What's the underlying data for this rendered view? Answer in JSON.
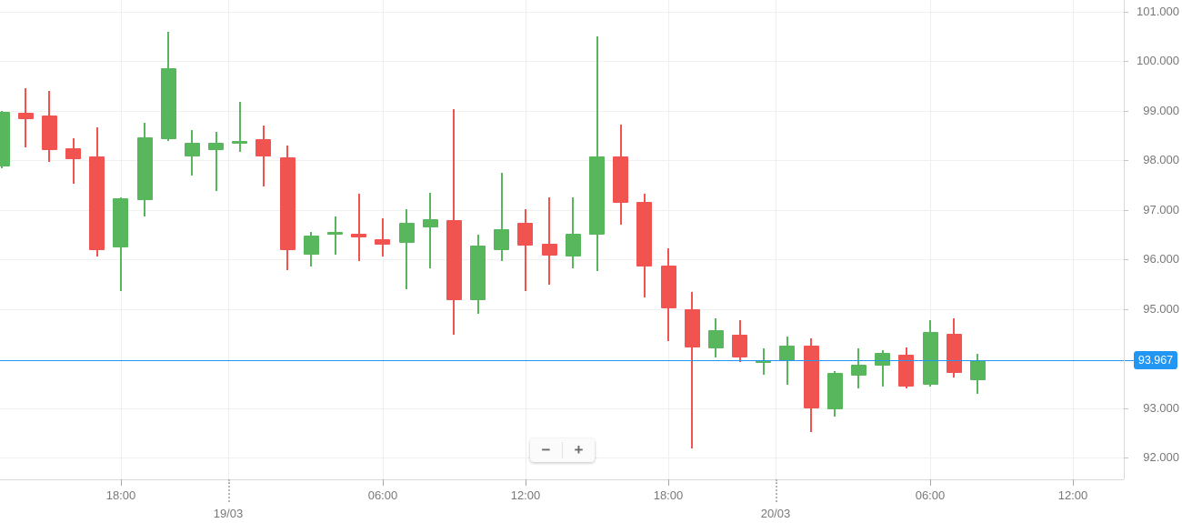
{
  "chart_data": {
    "type": "candlestick",
    "grid": true,
    "legend_position": "none",
    "colors": {
      "up": "#58b65c",
      "down": "#f05350",
      "price_line": "#2196f3",
      "grid": "#f0f0f0",
      "axis_border": "#d9d9d9",
      "axis_text": "#787878"
    },
    "y_axis": {
      "max": 101,
      "min": 92,
      "hidden_tick_behind_badge": "94.000",
      "ticks": [
        {
          "label": "101.000",
          "value": 101
        },
        {
          "label": "100.000",
          "value": 100
        },
        {
          "label": "99.000",
          "value": 99
        },
        {
          "label": "98.000",
          "value": 98
        },
        {
          "label": "97.000",
          "value": 97
        },
        {
          "label": "96.000",
          "value": 96
        },
        {
          "label": "95.000",
          "value": 95
        },
        {
          "label": "93.000",
          "value": 93
        },
        {
          "label": "92.000",
          "value": 92
        }
      ]
    },
    "x_axis": {
      "ticks": [
        {
          "label": "18:00",
          "kind": "time",
          "index": 5
        },
        {
          "label": "19/03",
          "kind": "date",
          "index": 9.5
        },
        {
          "label": "06:00",
          "kind": "time",
          "index": 16
        },
        {
          "label": "12:00",
          "kind": "time",
          "index": 22
        },
        {
          "label": "18:00",
          "kind": "time",
          "index": 28
        },
        {
          "label": "20/03",
          "kind": "date",
          "index": 32.5
        },
        {
          "label": "06:00",
          "kind": "time",
          "index": 39
        },
        {
          "label": "12:00",
          "kind": "time",
          "index": 45
        }
      ]
    },
    "candles": [
      {
        "o": 97.88,
        "h": 99.0,
        "l": 97.85,
        "c": 98.98
      },
      {
        "o": 98.97,
        "h": 99.46,
        "l": 98.26,
        "c": 98.84
      },
      {
        "o": 98.9,
        "h": 99.4,
        "l": 97.97,
        "c": 98.21
      },
      {
        "o": 98.24,
        "h": 98.45,
        "l": 97.53,
        "c": 98.02
      },
      {
        "o": 98.08,
        "h": 98.66,
        "l": 96.05,
        "c": 96.19
      },
      {
        "o": 96.23,
        "h": 97.25,
        "l": 95.36,
        "c": 97.23
      },
      {
        "o": 97.19,
        "h": 98.76,
        "l": 96.86,
        "c": 98.46
      },
      {
        "o": 98.42,
        "h": 100.6,
        "l": 98.39,
        "c": 99.86
      },
      {
        "o": 98.07,
        "h": 98.61,
        "l": 97.7,
        "c": 98.35
      },
      {
        "o": 98.21,
        "h": 98.58,
        "l": 97.38,
        "c": 98.35
      },
      {
        "o": 98.36,
        "h": 99.18,
        "l": 98.17,
        "c": 98.4
      },
      {
        "o": 98.43,
        "h": 98.7,
        "l": 97.47,
        "c": 98.08
      },
      {
        "o": 98.06,
        "h": 98.3,
        "l": 95.79,
        "c": 96.19
      },
      {
        "o": 96.1,
        "h": 96.55,
        "l": 95.86,
        "c": 96.48
      },
      {
        "o": 96.5,
        "h": 96.86,
        "l": 96.09,
        "c": 96.55
      },
      {
        "o": 96.52,
        "h": 97.32,
        "l": 95.96,
        "c": 96.45
      },
      {
        "o": 96.41,
        "h": 96.83,
        "l": 96.06,
        "c": 96.3
      },
      {
        "o": 96.33,
        "h": 97.01,
        "l": 95.39,
        "c": 96.74
      },
      {
        "o": 96.65,
        "h": 97.34,
        "l": 95.81,
        "c": 96.82
      },
      {
        "o": 96.8,
        "h": 99.03,
        "l": 94.48,
        "c": 95.18
      },
      {
        "o": 95.18,
        "h": 96.5,
        "l": 94.9,
        "c": 96.28
      },
      {
        "o": 96.19,
        "h": 97.74,
        "l": 95.96,
        "c": 96.61
      },
      {
        "o": 96.74,
        "h": 97.01,
        "l": 95.36,
        "c": 96.28
      },
      {
        "o": 96.32,
        "h": 97.25,
        "l": 95.49,
        "c": 96.09
      },
      {
        "o": 96.06,
        "h": 97.25,
        "l": 95.82,
        "c": 96.52
      },
      {
        "o": 96.5,
        "h": 100.5,
        "l": 95.76,
        "c": 98.08
      },
      {
        "o": 98.08,
        "h": 98.72,
        "l": 96.7,
        "c": 97.14
      },
      {
        "o": 97.16,
        "h": 97.32,
        "l": 95.23,
        "c": 95.85
      },
      {
        "o": 95.87,
        "h": 96.22,
        "l": 94.35,
        "c": 95.01
      },
      {
        "o": 94.99,
        "h": 95.35,
        "l": 92.19,
        "c": 94.22
      },
      {
        "o": 94.22,
        "h": 94.81,
        "l": 94.02,
        "c": 94.58
      },
      {
        "o": 94.48,
        "h": 94.77,
        "l": 93.92,
        "c": 94.02
      },
      {
        "o": 93.9,
        "h": 94.2,
        "l": 93.67,
        "c": 93.96
      },
      {
        "o": 93.95,
        "h": 94.44,
        "l": 93.46,
        "c": 94.26
      },
      {
        "o": 94.26,
        "h": 94.4,
        "l": 92.51,
        "c": 93.0
      },
      {
        "o": 92.97,
        "h": 93.75,
        "l": 92.84,
        "c": 93.7
      },
      {
        "o": 93.66,
        "h": 94.2,
        "l": 93.39,
        "c": 93.88
      },
      {
        "o": 93.85,
        "h": 94.16,
        "l": 93.42,
        "c": 94.11
      },
      {
        "o": 94.07,
        "h": 94.22,
        "l": 93.39,
        "c": 93.42
      },
      {
        "o": 93.46,
        "h": 94.77,
        "l": 93.42,
        "c": 94.53
      },
      {
        "o": 94.49,
        "h": 94.81,
        "l": 93.61,
        "c": 93.7
      },
      {
        "o": 93.57,
        "h": 94.09,
        "l": 93.28,
        "c": 93.97
      }
    ],
    "price_line": {
      "value": 93.967,
      "label": "93.967"
    }
  },
  "controls": {
    "zoom_out_label": "−",
    "zoom_in_label": "+"
  }
}
